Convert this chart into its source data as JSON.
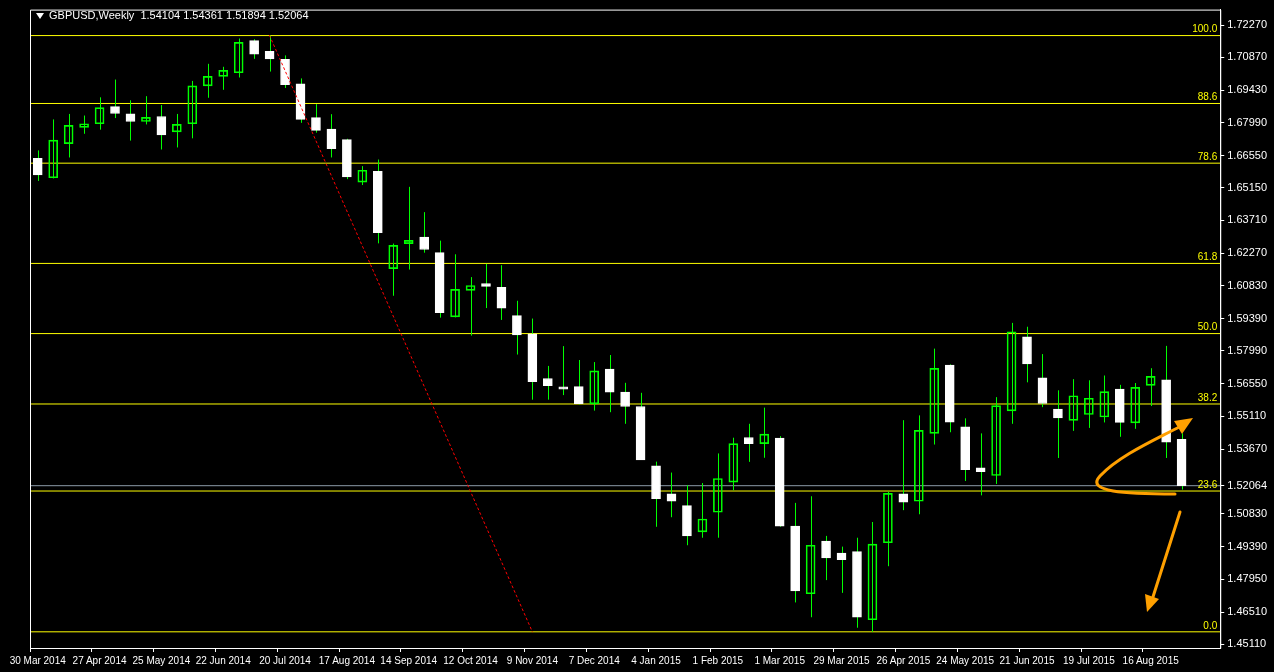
{
  "chart_data": {
    "type": "candlestick",
    "title": "GBPUSD,Weekly",
    "subtitle": "1.54104 1.54361 1.51894 1.52064",
    "color": "#00ff00",
    "colors": [
      "#ffffff",
      "#00ff00",
      "#00ff00",
      "#00ff00",
      "#00ff00",
      "#ffffff",
      "#ffffff",
      "#00ff00",
      "#ffffff",
      "#00ff00",
      "#00ff00",
      "#00ff00",
      "#00ff00",
      "#00ff00",
      "#ffffff",
      "#ffffff",
      "#ffffff",
      "#ffffff",
      "#ffffff",
      "#ffffff",
      "#ffffff",
      "#00ff00",
      "#ffffff",
      "#00ff00",
      "#00ff00",
      "#ffffff",
      "#ffffff",
      "#00ff00",
      "#00ff00",
      "#ffffff",
      "#ffffff",
      "#ffffff",
      "#ffffff",
      "#ffffff",
      "#ffffff",
      "#ffffff",
      "#00ff00",
      "#ffffff",
      "#ffffff",
      "#ffffff",
      "#ffffff",
      "#ffffff",
      "#ffffff",
      "#00ff00",
      "#00ff00",
      "#00ff00",
      "#ffffff",
      "#00ff00",
      "#ffffff",
      "#ffffff",
      "#00ff00",
      "#ffffff",
      "#ffffff",
      "#ffffff",
      "#00ff00",
      "#00ff00",
      "#ffffff",
      "#00ff00",
      "#00ff00",
      "#ffffff",
      "#ffffff",
      "#ffffff",
      "#00ff00",
      "#00ff00",
      "#ffffff",
      "#ffffff",
      "#ffffff",
      "#00ff00",
      "#00ff00",
      "#00ff00",
      "#ffffff",
      "#00ff00",
      "#00ff00",
      "#ffffff",
      "#ffffff"
    ],
    "categories": [
      "30 Mar 2014",
      null,
      null,
      null,
      "27 Apr 2014",
      null,
      null,
      null,
      "25 May 2014",
      null,
      null,
      null,
      "22 Jun 2014",
      null,
      null,
      null,
      "20 Jul 2014",
      null,
      null,
      null,
      "17 Aug 2014",
      null,
      null,
      null,
      "14 Sep 2014",
      null,
      null,
      null,
      "12 Oct 2014",
      null,
      null,
      null,
      "9 Nov 2014",
      null,
      null,
      null,
      "7 Dec 2014",
      null,
      null,
      null,
      "4 Jan 2015",
      null,
      null,
      null,
      "1 Feb 2015",
      null,
      null,
      null,
      "1 Mar 2015",
      null,
      null,
      null,
      "29 Mar 2015",
      null,
      null,
      null,
      "26 Apr 2015",
      null,
      null,
      null,
      "24 May 2015",
      null,
      null,
      null,
      "21 Jun 2015",
      null,
      null,
      null,
      "19 Jul 2015",
      null,
      null,
      null,
      "16 Aug 2015",
      null,
      null
    ],
    "ohlc": [
      [
        1.6643,
        1.6678,
        1.6544,
        1.657
      ],
      [
        1.6558,
        1.6814,
        1.6555,
        1.6723
      ],
      [
        1.6708,
        1.6838,
        1.6647,
        1.6788
      ],
      [
        1.6779,
        1.6831,
        1.6751,
        1.6795
      ],
      [
        1.6795,
        1.6911,
        1.6769,
        1.6866
      ],
      [
        1.687,
        1.6989,
        1.682,
        1.684
      ],
      [
        1.6838,
        1.6898,
        1.6721,
        1.6805
      ],
      [
        1.6805,
        1.6916,
        1.6792,
        1.6823
      ],
      [
        1.6827,
        1.6877,
        1.6682,
        1.6746
      ],
      [
        1.6759,
        1.6838,
        1.6691,
        1.6792
      ],
      [
        1.6795,
        1.6983,
        1.6731,
        1.6961
      ],
      [
        1.6961,
        1.7058,
        1.6909,
        1.7003
      ],
      [
        1.7003,
        1.7045,
        1.6944,
        1.7029
      ],
      [
        1.7019,
        1.7169,
        1.6998,
        1.7152
      ],
      [
        1.716,
        1.7166,
        1.708,
        1.71
      ],
      [
        1.7113,
        1.7182,
        1.7024,
        1.708
      ],
      [
        1.7078,
        1.7095,
        1.6952,
        1.6966
      ],
      [
        1.697,
        1.6994,
        1.6799,
        1.6814
      ],
      [
        1.6822,
        1.6881,
        1.6756,
        1.6766
      ],
      [
        1.6772,
        1.6837,
        1.6647,
        1.6686
      ],
      [
        1.6725,
        1.6729,
        1.6552,
        1.6562
      ],
      [
        1.6539,
        1.6609,
        1.6526,
        1.6591
      ],
      [
        1.6586,
        1.6638,
        1.627,
        1.6317
      ],
      [
        1.6159,
        1.6269,
        1.604,
        1.6261
      ],
      [
        1.6269,
        1.6518,
        1.6155,
        1.6283
      ],
      [
        1.6298,
        1.6407,
        1.6229,
        1.6243
      ],
      [
        1.6229,
        1.6282,
        1.5944,
        1.5966
      ],
      [
        1.5947,
        1.6222,
        1.5945,
        1.6068
      ],
      [
        1.6064,
        1.6122,
        1.5865,
        1.6085
      ],
      [
        1.6094,
        1.618,
        1.5986,
        1.6081
      ],
      [
        1.6077,
        1.6174,
        1.5934,
        1.5986
      ],
      [
        1.5953,
        1.6018,
        1.5782,
        1.5868
      ],
      [
        1.5873,
        1.594,
        1.5584,
        1.5663
      ],
      [
        1.5677,
        1.5732,
        1.5584,
        1.5645
      ],
      [
        1.564,
        1.5819,
        1.5604,
        1.563
      ],
      [
        1.5641,
        1.5758,
        1.5563,
        1.5566
      ],
      [
        1.5566,
        1.5749,
        1.5536,
        1.571
      ],
      [
        1.5718,
        1.578,
        1.5529,
        1.5617
      ],
      [
        1.5617,
        1.5658,
        1.5478,
        1.5554
      ],
      [
        1.5554,
        1.5614,
        1.532,
        1.532
      ],
      [
        1.5294,
        1.5312,
        1.5026,
        1.5149
      ],
      [
        1.5171,
        1.5264,
        1.5068,
        1.5138
      ],
      [
        1.5119,
        1.5209,
        1.4945,
        1.4986
      ],
      [
        1.5004,
        1.5218,
        1.4978,
        1.506
      ],
      [
        1.509,
        1.5348,
        1.4978,
        1.5238
      ],
      [
        1.5222,
        1.5417,
        1.5186,
        1.5391
      ],
      [
        1.5418,
        1.5478,
        1.5311,
        1.5391
      ],
      [
        1.5391,
        1.5549,
        1.5329,
        1.5433
      ],
      [
        1.5415,
        1.5424,
        1.5026,
        1.5029
      ],
      [
        1.5029,
        1.5131,
        1.4694,
        1.4744
      ],
      [
        1.4732,
        1.516,
        1.4629,
        1.4945
      ],
      [
        1.4963,
        1.4986,
        1.4792,
        1.4889
      ],
      [
        1.4911,
        1.4939,
        1.4736,
        1.4882
      ],
      [
        1.4917,
        1.4978,
        1.4583,
        1.4629
      ],
      [
        1.4618,
        1.5047,
        1.4565,
        1.495
      ],
      [
        1.4956,
        1.5181,
        1.4853,
        1.5173
      ],
      [
        1.5171,
        1.5494,
        1.5099,
        1.5134
      ],
      [
        1.5138,
        1.5515,
        1.5081,
        1.5449
      ],
      [
        1.5436,
        1.5808,
        1.5387,
        1.5721
      ],
      [
        1.5736,
        1.5739,
        1.5441,
        1.5485
      ],
      [
        1.5465,
        1.5502,
        1.5227,
        1.5277
      ],
      [
        1.5285,
        1.5436,
        1.5164,
        1.5268
      ],
      [
        1.5251,
        1.5595,
        1.5214,
        1.5558
      ],
      [
        1.5535,
        1.5921,
        1.5478,
        1.5882
      ],
      [
        1.586,
        1.5904,
        1.566,
        1.5741
      ],
      [
        1.568,
        1.5784,
        1.5551,
        1.5567
      ],
      [
        1.5543,
        1.5625,
        1.5328,
        1.5504
      ],
      [
        1.5493,
        1.5674,
        1.5447,
        1.5601
      ],
      [
        1.5519,
        1.5669,
        1.546,
        1.559
      ],
      [
        1.5508,
        1.569,
        1.5484,
        1.5619
      ],
      [
        1.563,
        1.5649,
        1.5421,
        1.5484
      ],
      [
        1.5482,
        1.5657,
        1.5456,
        1.5638
      ],
      [
        1.5647,
        1.5722,
        1.5556,
        1.5686
      ],
      [
        1.5671,
        1.582,
        1.5328,
        1.5397
      ],
      [
        1.54104,
        1.54361,
        1.51894,
        1.52064
      ]
    ],
    "series": [
      {
        "type": "line",
        "color": "#ff0000",
        "line_style": "dotted",
        "values": [
          null,
          null,
          null,
          null,
          null,
          null,
          null,
          null,
          null,
          null,
          null,
          null,
          null,
          null,
          null,
          1.7182,
          null,
          null,
          null,
          null,
          null,
          null,
          null,
          null,
          null,
          null,
          null,
          null,
          null,
          null,
          null,
          null,
          1.4565,
          null,
          null,
          null,
          null,
          null,
          null,
          null,
          null,
          null,
          null,
          null,
          null,
          null,
          null,
          null,
          null,
          null,
          null,
          null,
          null,
          null,
          null,
          null,
          null,
          null,
          null,
          null,
          null,
          null,
          null,
          null,
          null,
          null,
          null,
          null,
          null,
          null,
          null,
          null,
          null,
          null,
          null
        ]
      }
    ],
    "ylim": [
      1.4494,
      1.7296
    ],
    "yticks": [
      {
        "value": 1.7227,
        "label": "1.72270"
      },
      {
        "value": 1.7087,
        "label": "1.70870"
      },
      {
        "value": 1.6943,
        "label": "1.69430"
      },
      {
        "value": 1.6799,
        "label": "1.67990"
      },
      {
        "value": 1.6655,
        "label": "1.66550"
      },
      {
        "value": 1.6515,
        "label": "1.65150"
      },
      {
        "value": 1.6371,
        "label": "1.63710"
      },
      {
        "value": 1.6227,
        "label": "1.62270"
      },
      {
        "value": 1.6083,
        "label": "1.60830"
      },
      {
        "value": 1.5939,
        "label": "1.59390"
      },
      {
        "value": 1.5799,
        "label": "1.57990"
      },
      {
        "value": 1.5655,
        "label": "1.56550"
      },
      {
        "value": 1.5511,
        "label": "1.55110"
      },
      {
        "value": 1.5367,
        "label": "1.53670"
      },
      {
        "value": 1.52064,
        "label": "1.52064"
      },
      {
        "value": 1.5083,
        "label": "1.50830"
      },
      {
        "value": 1.4939,
        "label": "1.49390"
      },
      {
        "value": 1.4795,
        "label": "1.47950"
      },
      {
        "value": 1.4651,
        "label": "1.46510"
      },
      {
        "value": 1.4511,
        "label": "1.45110"
      }
    ],
    "ref_lines": [
      {
        "axis": "y",
        "value": 1.7182,
        "color": "#ffff00"
      },
      {
        "axis": "y",
        "value": 1.6884,
        "color": "#ffff00"
      },
      {
        "axis": "y",
        "value": 1.6622,
        "color": "#ffff00"
      },
      {
        "axis": "y",
        "value": 1.6182,
        "color": "#ffff00"
      },
      {
        "axis": "y",
        "value": 1.5874,
        "color": "#ffff00"
      },
      {
        "axis": "y",
        "value": 1.5565,
        "color": "#ffff00"
      },
      {
        "axis": "y",
        "value": 1.5183,
        "color": "#ffff00"
      },
      {
        "axis": "y",
        "value": 1.4565,
        "color": "#ffff00"
      },
      {
        "axis": "y",
        "value": 1.52064,
        "color": "#8c9aa8"
      }
    ],
    "annotations": [
      {
        "text": "100.0",
        "y": 1.7182
      },
      {
        "text": "88.6",
        "y": 1.6884
      },
      {
        "text": "78.6",
        "y": 1.6622
      },
      {
        "text": "61.8",
        "y": 1.6182
      },
      {
        "text": "50.0",
        "y": 1.5874
      },
      {
        "text": "38.2",
        "y": 1.5565
      },
      {
        "text": "23.6",
        "y": 1.5183
      },
      {
        "text": "0.0",
        "y": 1.4565
      }
    ]
  }
}
